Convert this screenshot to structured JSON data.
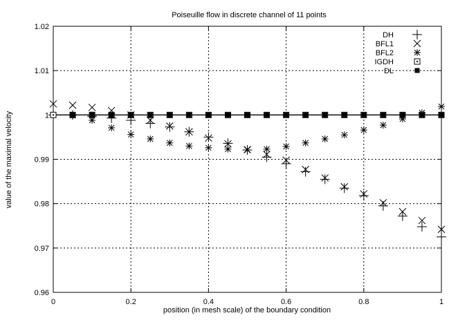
{
  "chart_data": {
    "type": "scatter",
    "title": "Poiseuille flow in discrete channel of 11 points",
    "xlabel": "position (in mesh scale) of the boundary condition",
    "ylabel": "value of the maximal velocity",
    "xlim": [
      0,
      1
    ],
    "ylim": [
      0.96,
      1.02
    ],
    "x_ticks": [
      "0",
      "0.2",
      "0.4",
      "0.6",
      "0.8",
      "1"
    ],
    "y_ticks": [
      "0.96",
      "0.97",
      "0.98",
      "0.99",
      "1",
      "1.01",
      "1.02"
    ],
    "grid": true,
    "legend_position": "top-right",
    "series": [
      {
        "name": "DH",
        "marker": "plus",
        "x": [
          0,
          0.05,
          0.1,
          0.15,
          0.2,
          0.25,
          0.3,
          0.35,
          0.4,
          0.45,
          0.5,
          0.55,
          0.6,
          0.65,
          0.7,
          0.75,
          0.8,
          0.85,
          0.9,
          0.95,
          1
        ],
        "y": [
          1.0,
          1.0,
          0.9997,
          0.9993,
          0.9988,
          0.9981,
          0.9973,
          0.9962,
          0.995,
          0.9936,
          0.9921,
          0.9905,
          0.989,
          0.9872,
          0.9855,
          0.9835,
          0.9818,
          0.9795,
          0.9772,
          0.9748,
          0.9725
        ]
      },
      {
        "name": "BFL1",
        "marker": "cross",
        "x": [
          0,
          0.05,
          0.1,
          0.15,
          0.2,
          0.25,
          0.3,
          0.35,
          0.4,
          0.45,
          0.5,
          0.55,
          0.6,
          0.65,
          0.7,
          0.75,
          0.8,
          0.85,
          0.9,
          0.95,
          1
        ],
        "y": [
          1.0025,
          1.0022,
          1.0017,
          1.001,
          1.0,
          0.9988,
          0.9975,
          0.9962,
          0.9948,
          0.9935,
          0.9922,
          0.9911,
          0.9898,
          0.9877,
          0.9858,
          0.9838,
          0.9822,
          0.9802,
          0.9782,
          0.9762,
          0.9742
        ]
      },
      {
        "name": "BFL2",
        "marker": "star",
        "x": [
          0,
          0.05,
          0.1,
          0.15,
          0.2,
          0.25,
          0.3,
          0.35,
          0.4,
          0.45,
          0.5,
          0.55,
          0.6,
          0.65,
          0.7,
          0.75,
          0.8,
          0.85,
          0.9,
          0.95,
          1
        ],
        "y": [
          1.0,
          0.9999,
          0.9988,
          0.9971,
          0.9956,
          0.9946,
          0.9937,
          0.993,
          0.9926,
          0.9923,
          0.9921,
          0.9923,
          0.9929,
          0.9937,
          0.9946,
          0.9955,
          0.9966,
          0.9977,
          0.9991,
          1.0005,
          1.0019
        ]
      },
      {
        "name": "IGDH",
        "marker": "dotted-square",
        "x": [
          0,
          0.05,
          0.1,
          0.15,
          0.2,
          0.25,
          0.3,
          0.35,
          0.4,
          0.45,
          0.5,
          0.55,
          0.6,
          0.65,
          0.7,
          0.75,
          0.8,
          0.85,
          0.9,
          0.95,
          1
        ],
        "y": [
          1,
          1,
          1,
          1,
          1,
          1,
          1,
          1,
          1,
          1,
          1,
          1,
          1,
          1,
          1,
          1,
          1,
          1,
          1,
          1,
          1
        ]
      },
      {
        "name": "DL",
        "marker": "filled-square",
        "x": [
          0.05,
          0.1,
          0.15,
          0.2,
          0.25,
          0.3,
          0.35,
          0.4,
          0.45,
          0.5,
          0.55,
          0.6,
          0.65,
          0.7,
          0.75,
          0.8,
          0.85,
          0.9,
          0.95,
          1
        ],
        "y": [
          1,
          1,
          1,
          1,
          1,
          1,
          1,
          1,
          1,
          1,
          1,
          1,
          1,
          1,
          1,
          1,
          1,
          1,
          1,
          1
        ]
      }
    ]
  }
}
